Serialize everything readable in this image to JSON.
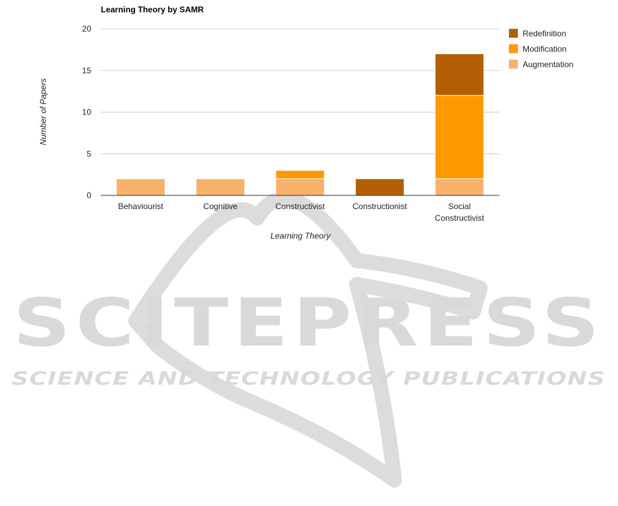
{
  "watermark": {
    "title": "SCITEPRESS",
    "subtitle": "SCIENCE AND TECHNOLOGY PUBLICATIONS"
  },
  "chart_data": {
    "type": "bar",
    "stacked": true,
    "title": "Learning Theory by SAMR",
    "xlabel": "Learning Theory",
    "ylabel": "Number of Papers",
    "ylim": [
      0,
      20
    ],
    "yticks": [
      0,
      5,
      10,
      15,
      20
    ],
    "grid": true,
    "legend_position": "right",
    "categories": [
      [
        "Behaviourist"
      ],
      [
        "Cognitive"
      ],
      [
        "Constructivist"
      ],
      [
        "Constructionist"
      ],
      [
        "Social",
        "Constructivist"
      ]
    ],
    "series": [
      {
        "name": "Augmentation",
        "color": "#f6b26b",
        "values": [
          2,
          2,
          2,
          0,
          2
        ]
      },
      {
        "name": "Modification",
        "color": "#ff9900",
        "values": [
          0,
          0,
          1,
          0,
          10
        ]
      },
      {
        "name": "Redefinition",
        "color": "#b45f06",
        "values": [
          0,
          0,
          0,
          2,
          5
        ]
      }
    ],
    "legend_order": [
      "Redefinition",
      "Modification",
      "Augmentation"
    ]
  }
}
